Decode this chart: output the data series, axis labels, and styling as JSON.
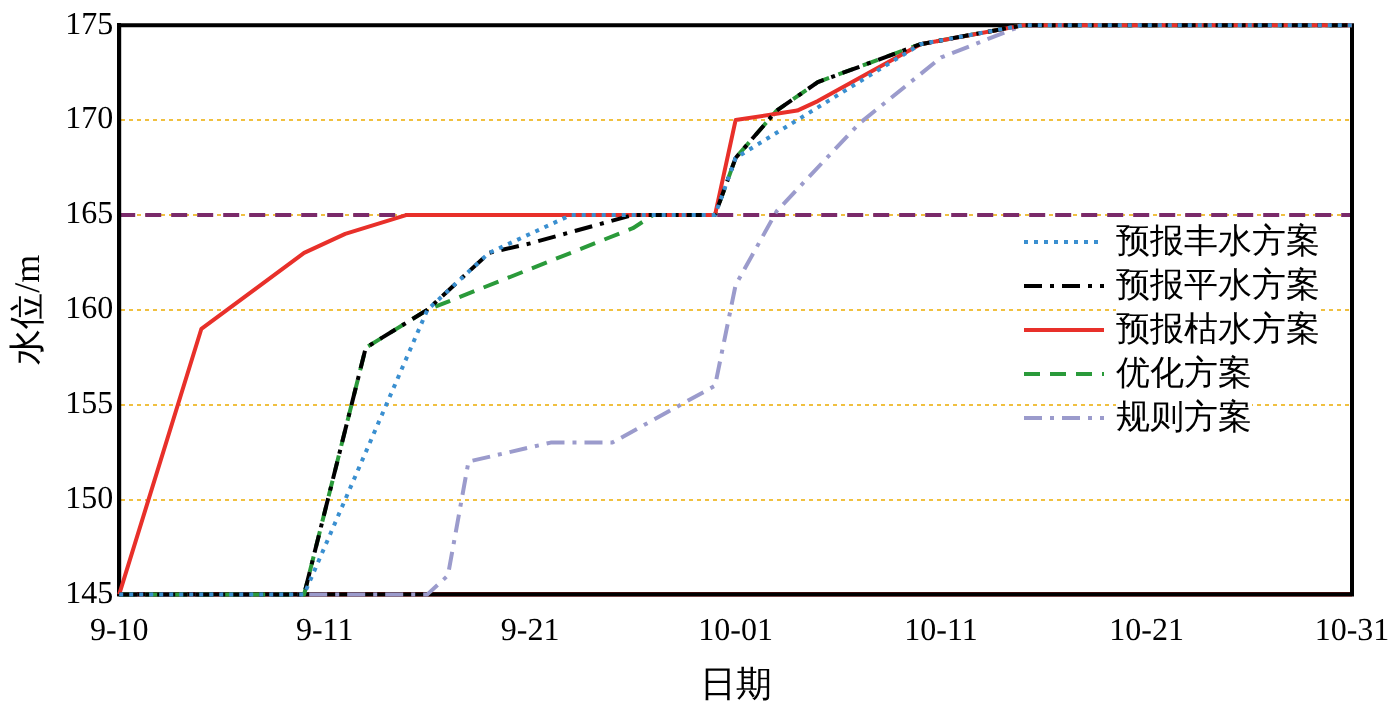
{
  "chart_data": {
    "type": "line",
    "xlabel": "日期",
    "ylabel": "水位/m",
    "xlim": [
      "--09-01",
      "--10-31"
    ],
    "xticks": [
      {
        "value": "--09-01",
        "label": "9-10"
      },
      {
        "value": "--09-11",
        "label": "9-11"
      },
      {
        "value": "--09-21",
        "label": "9-21"
      },
      {
        "value": "--10-01",
        "label": "10-01"
      },
      {
        "value": "--10-11",
        "label": "10-11"
      },
      {
        "value": "--10-21",
        "label": "10-21"
      },
      {
        "value": "--10-31",
        "label": "10-31"
      }
    ],
    "ylim": [
      145,
      175
    ],
    "yticks": [
      145,
      150,
      155,
      160,
      165,
      170,
      175
    ],
    "grid": "y",
    "legend": "right",
    "marker": "none",
    "ref_lines": [
      {
        "axis": "y",
        "value": 165,
        "color": "#7a2a6a",
        "line_style": "dashed"
      },
      {
        "axis": "y",
        "value": 145,
        "color": "#e8302a",
        "line_style": "solid"
      }
    ],
    "series": [
      {
        "name": "预报丰水方案",
        "color": "#3a8fd0",
        "line_style": "dotted",
        "x": [
          "--09-01",
          "--09-10",
          "--09-16",
          "--09-19",
          "--09-23",
          "--09-30",
          "--10-01",
          "--10-04",
          "--10-10",
          "--10-15",
          "--10-31"
        ],
        "values": [
          145,
          145,
          160,
          163,
          165,
          165,
          168,
          170,
          174,
          175,
          175
        ]
      },
      {
        "name": "预报平水方案",
        "color": "#000000",
        "line_style": "dashdot",
        "x": [
          "--09-01",
          "--09-10",
          "--09-13",
          "--09-16",
          "--09-19",
          "--09-21",
          "--09-26",
          "--09-30",
          "--10-01",
          "--10-03",
          "--10-05",
          "--10-10",
          "--10-15",
          "--10-31"
        ],
        "values": [
          145,
          145,
          158,
          160,
          163,
          163.5,
          165,
          165,
          168,
          170.5,
          172,
          174,
          175,
          175
        ]
      },
      {
        "name": "预报枯水方案",
        "color": "#e8302a",
        "line_style": "solid",
        "x": [
          "--09-01",
          "--09-05",
          "--09-10",
          "--09-12",
          "--09-15",
          "--09-30",
          "--10-01",
          "--10-04",
          "--10-05",
          "--10-10",
          "--10-15",
          "--10-31"
        ],
        "values": [
          145,
          159,
          163,
          164,
          165,
          165,
          170,
          170.5,
          171,
          174,
          175,
          175
        ]
      },
      {
        "name": "优化方案",
        "color": "#2a9a3a",
        "line_style": "dashed",
        "x": [
          "--09-01",
          "--09-10",
          "--09-13",
          "--09-16",
          "--09-26",
          "--09-27",
          "--09-30",
          "--10-01",
          "--10-03",
          "--10-05",
          "--10-10",
          "--10-15",
          "--10-31"
        ],
        "values": [
          145,
          145,
          158,
          160,
          164.3,
          165,
          165,
          168,
          170.5,
          172,
          174,
          175,
          175
        ]
      },
      {
        "name": "规则方案",
        "color": "#9b9bcc",
        "line_style": "dashdot",
        "x": [
          "--09-01",
          "--09-16",
          "--09-17",
          "--09-18",
          "--09-22",
          "--09-25",
          "--09-30",
          "--10-01",
          "--10-03",
          "--10-07",
          "--10-11",
          "--10-15",
          "--10-31"
        ],
        "values": [
          145,
          145,
          146,
          152,
          153,
          153,
          156,
          161.3,
          165.2,
          169.8,
          173.3,
          175,
          175
        ]
      }
    ]
  }
}
